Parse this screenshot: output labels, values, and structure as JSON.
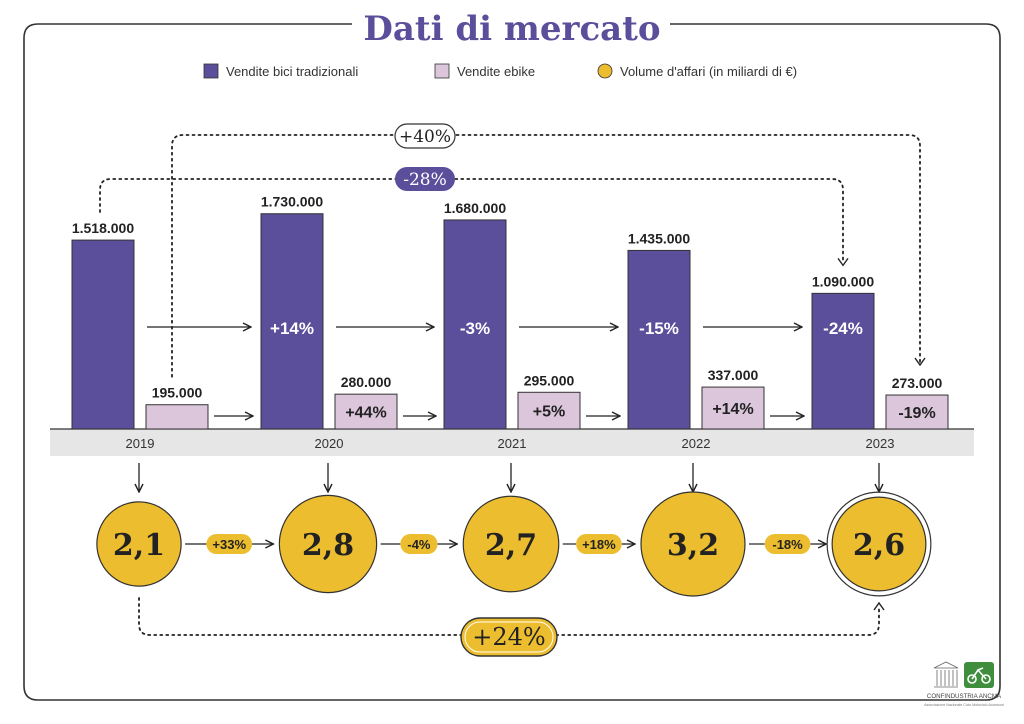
{
  "title": "Dati di mercato",
  "colors": {
    "traditional": "#5b4f9b",
    "ebike": "#dcc6dc",
    "volume": "#ecbd2e",
    "frame": "#333333",
    "axis_band": "#e6e6e6",
    "text": "#222222"
  },
  "legend": [
    {
      "key": "traditional",
      "label": "Vendite bici tradizionali"
    },
    {
      "key": "ebike",
      "label": "Vendite ebike"
    },
    {
      "key": "volume",
      "label": "Volume d'affari (in miliardi di €)"
    }
  ],
  "chart_data": {
    "type": "bar",
    "title": "Dati di mercato",
    "categories": [
      "2019",
      "2020",
      "2021",
      "2022",
      "2023"
    ],
    "ylim": [
      0,
      1800000
    ],
    "series": [
      {
        "name": "Vendite bici tradizionali",
        "values": [
          1518000,
          1730000,
          1680000,
          1435000,
          1090000
        ],
        "value_labels": [
          "1.518.000",
          "1.730.000",
          "1.680.000",
          "1.435.000",
          "1.090.000"
        ],
        "change_labels": [
          "",
          "+14%",
          "-3%",
          "-15%",
          "-24%"
        ]
      },
      {
        "name": "Vendite ebike",
        "values": [
          195000,
          280000,
          295000,
          337000,
          273000
        ],
        "value_labels": [
          "195.000",
          "280.000",
          "295.000",
          "337.000",
          "273.000"
        ],
        "change_labels": [
          "",
          "+44%",
          "+5%",
          "+14%",
          "-19%"
        ]
      }
    ],
    "volume": {
      "name": "Volume d'affari (in miliardi di €)",
      "values": [
        2.1,
        2.8,
        2.7,
        3.2,
        2.6
      ],
      "labels": [
        "2,1",
        "2,8",
        "2,7",
        "3,2",
        "2,6"
      ],
      "change_labels": [
        "+33%",
        "-4%",
        "+18%",
        "-18%"
      ]
    },
    "annotations": {
      "ebike_2019_2023": "+40%",
      "traditional_2019_2023": "-28%",
      "volume_2019_2023": "+24%"
    }
  },
  "logos": {
    "confindustria": "CONFINDUSTRIA ANCMA",
    "subtitle": "Associazione Nazionale Ciclo Motociclo Accessori"
  }
}
